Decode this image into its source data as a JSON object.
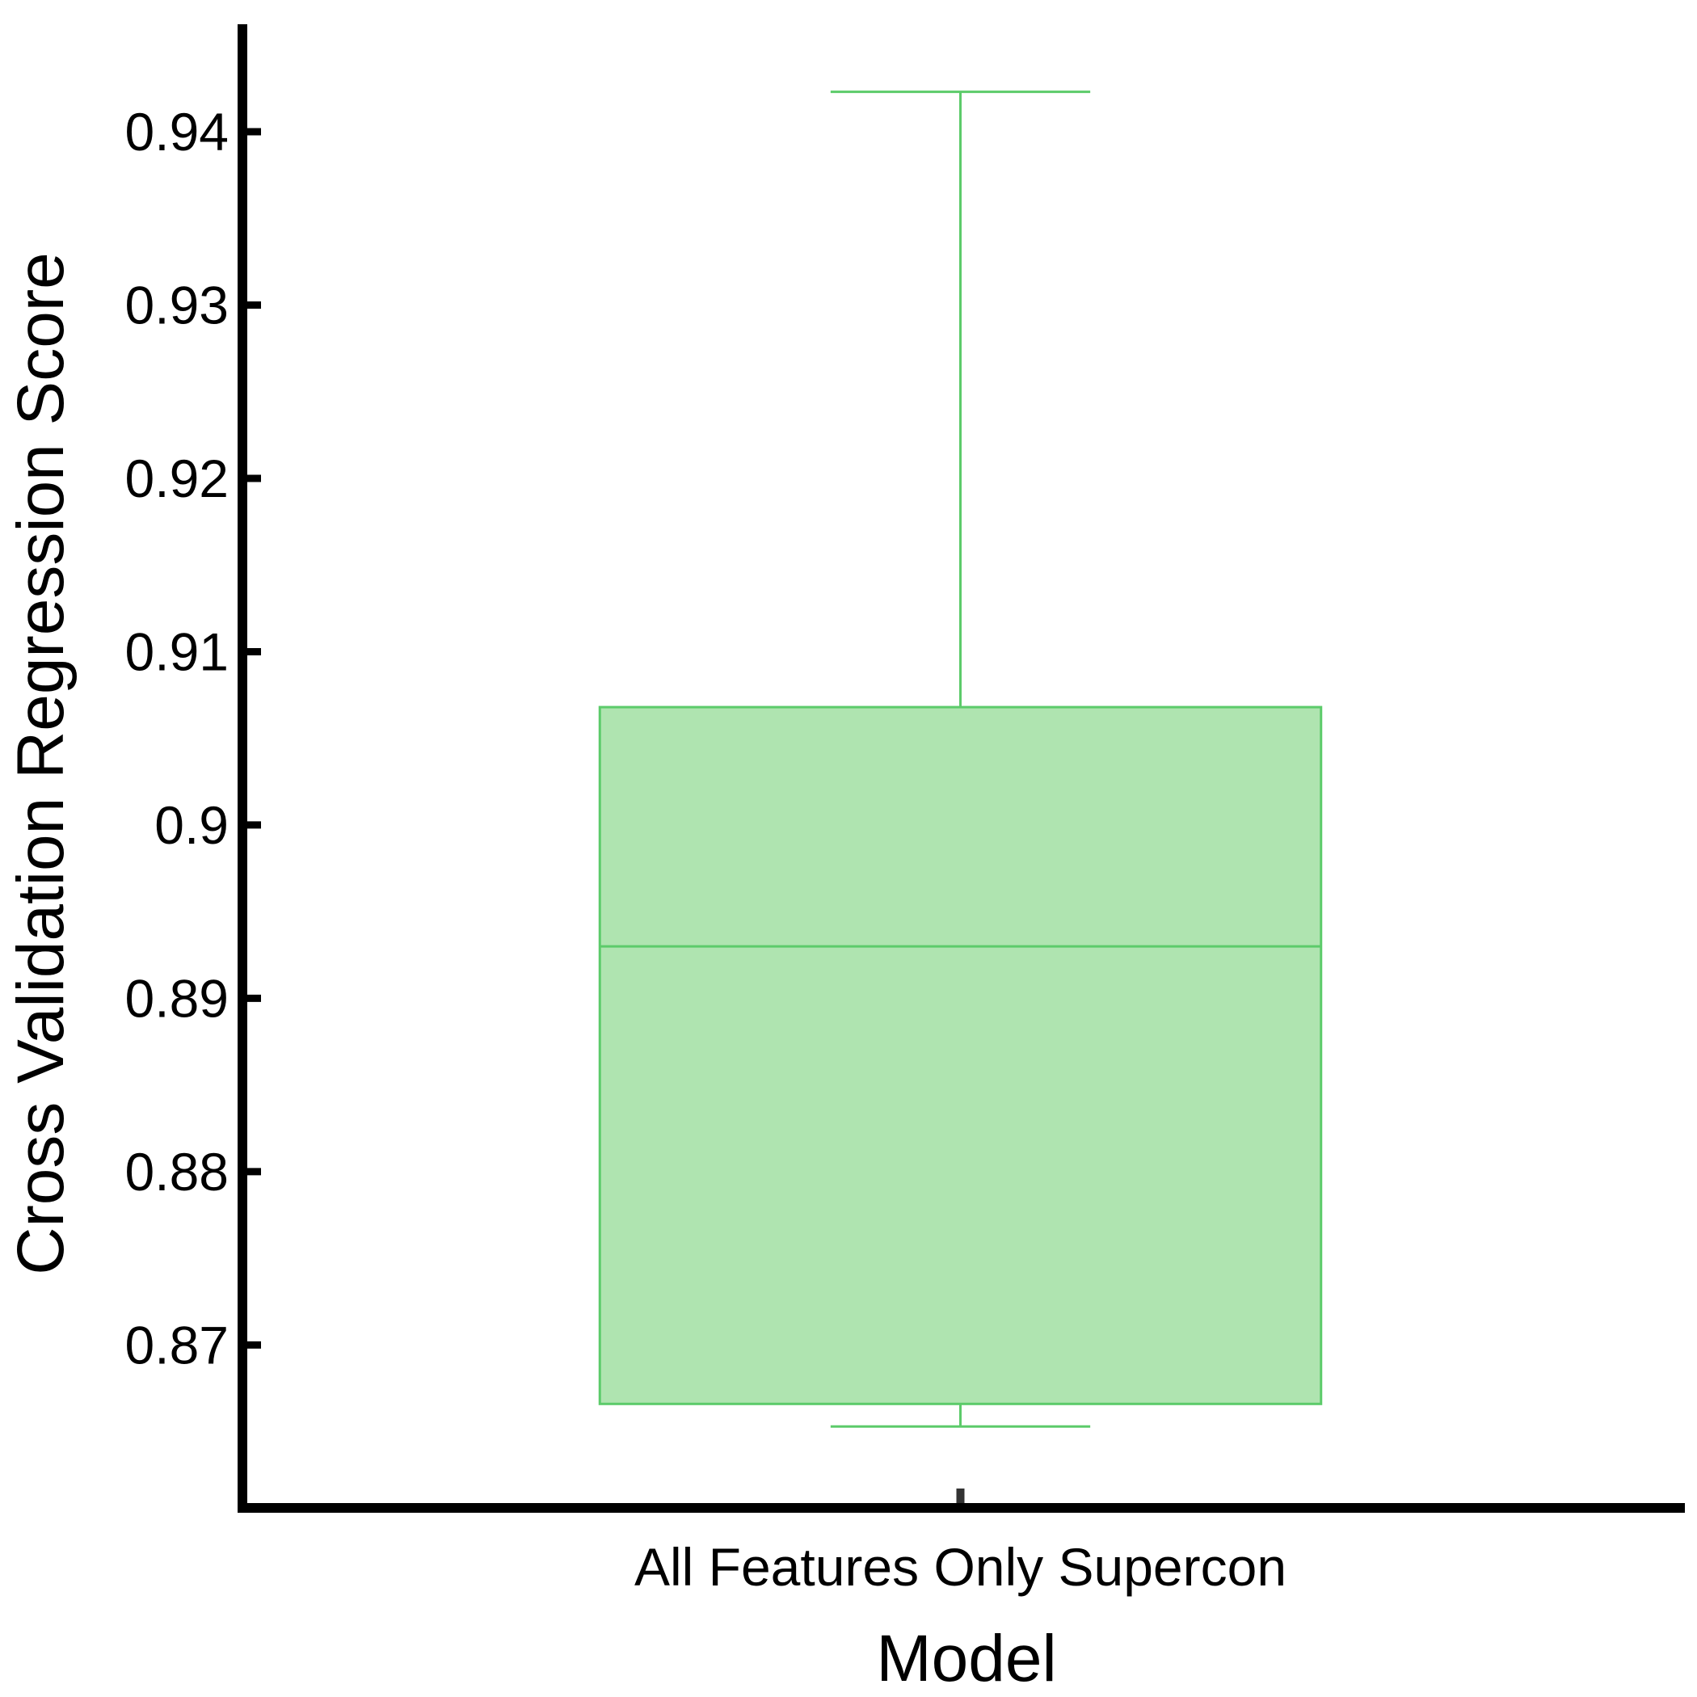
{
  "chart_data": {
    "type": "box",
    "title": "",
    "xlabel": "Model",
    "ylabel": "Cross Validation Regression Score",
    "ylim": [
      0.8606,
      0.9462
    ],
    "yticks": [
      {
        "value": 0.87,
        "label": "0.87"
      },
      {
        "value": 0.88,
        "label": "0.88"
      },
      {
        "value": 0.89,
        "label": "0.89"
      },
      {
        "value": 0.9,
        "label": "0.9"
      },
      {
        "value": 0.91,
        "label": "0.91"
      },
      {
        "value": 0.92,
        "label": "0.92"
      },
      {
        "value": 0.93,
        "label": "0.93"
      },
      {
        "value": 0.94,
        "label": "0.94"
      }
    ],
    "grid": false,
    "categories": [
      "All Features Only Supercon"
    ],
    "boxes": [
      {
        "category": "All Features Only Supercon",
        "whisker_low": 0.8653,
        "q1": 0.8666,
        "median": 0.893,
        "q3": 0.9068,
        "whisker_high": 0.9423
      }
    ],
    "colors": {
      "box_fill": "#afe4b0",
      "box_stroke": "#5ccb6a",
      "axis": "#000000"
    }
  }
}
